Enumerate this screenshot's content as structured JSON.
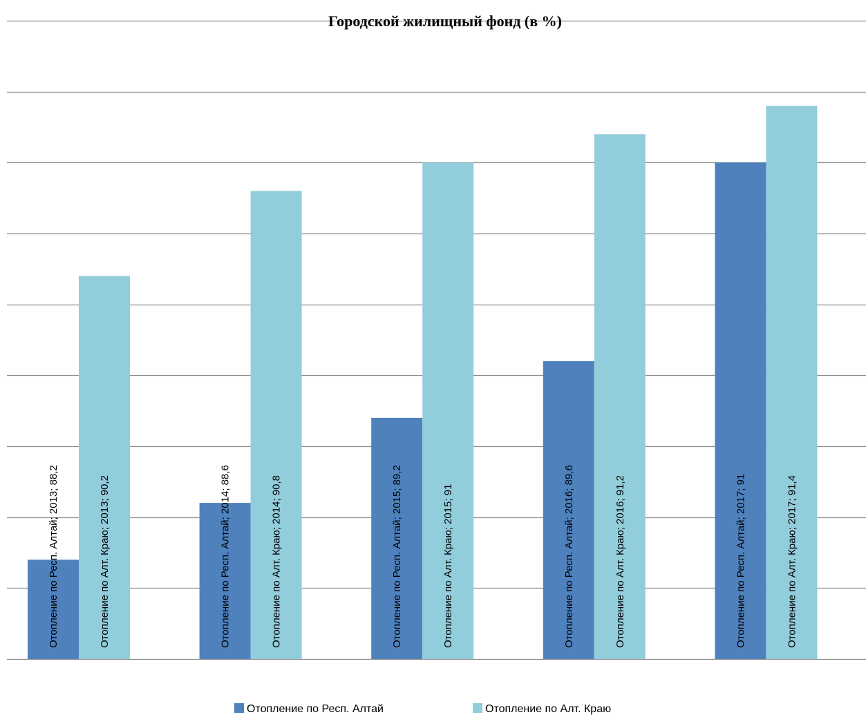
{
  "chart_data": {
    "type": "bar",
    "title": "Городской жилищный фонд (в %)",
    "xlabel": "",
    "ylabel": "",
    "ylim": [
      87.5,
      92
    ],
    "grid": true,
    "legend_position": "bottom",
    "categories": [
      "2013",
      "2014",
      "2015",
      "2016",
      "2017"
    ],
    "series": [
      {
        "name": "Отопление по Респ. Алтай",
        "color": "#4F81BD",
        "values": [
          88.2,
          88.6,
          89.2,
          89.6,
          91
        ],
        "data_labels": [
          "Отопление по Респ. Алтай; 2013; 88,2",
          "Отопление по Респ. Алтай; 2014; 88,6",
          "Отопление по Респ. Алтай; 2015; 89,2",
          "Отопление по Респ. Алтай; 2016; 89,6",
          "Отопление по Респ. Алтай; 2017; 91"
        ]
      },
      {
        "name": "Отопление по Алт. Краю",
        "color": "#92CDDC",
        "values": [
          90.2,
          90.8,
          91,
          91.2,
          91.4
        ],
        "data_labels": [
          "Отопление по Алт. Краю; 2013; 90,2",
          "Отопление по Алт. Краю; 2014; 90,8",
          "Отопление по Алт. Краю; 2015; 91",
          "Отопление по Алт. Краю; 2016; 91,2",
          "Отопление по Алт. Краю; 2017; 91,4"
        ]
      }
    ]
  }
}
